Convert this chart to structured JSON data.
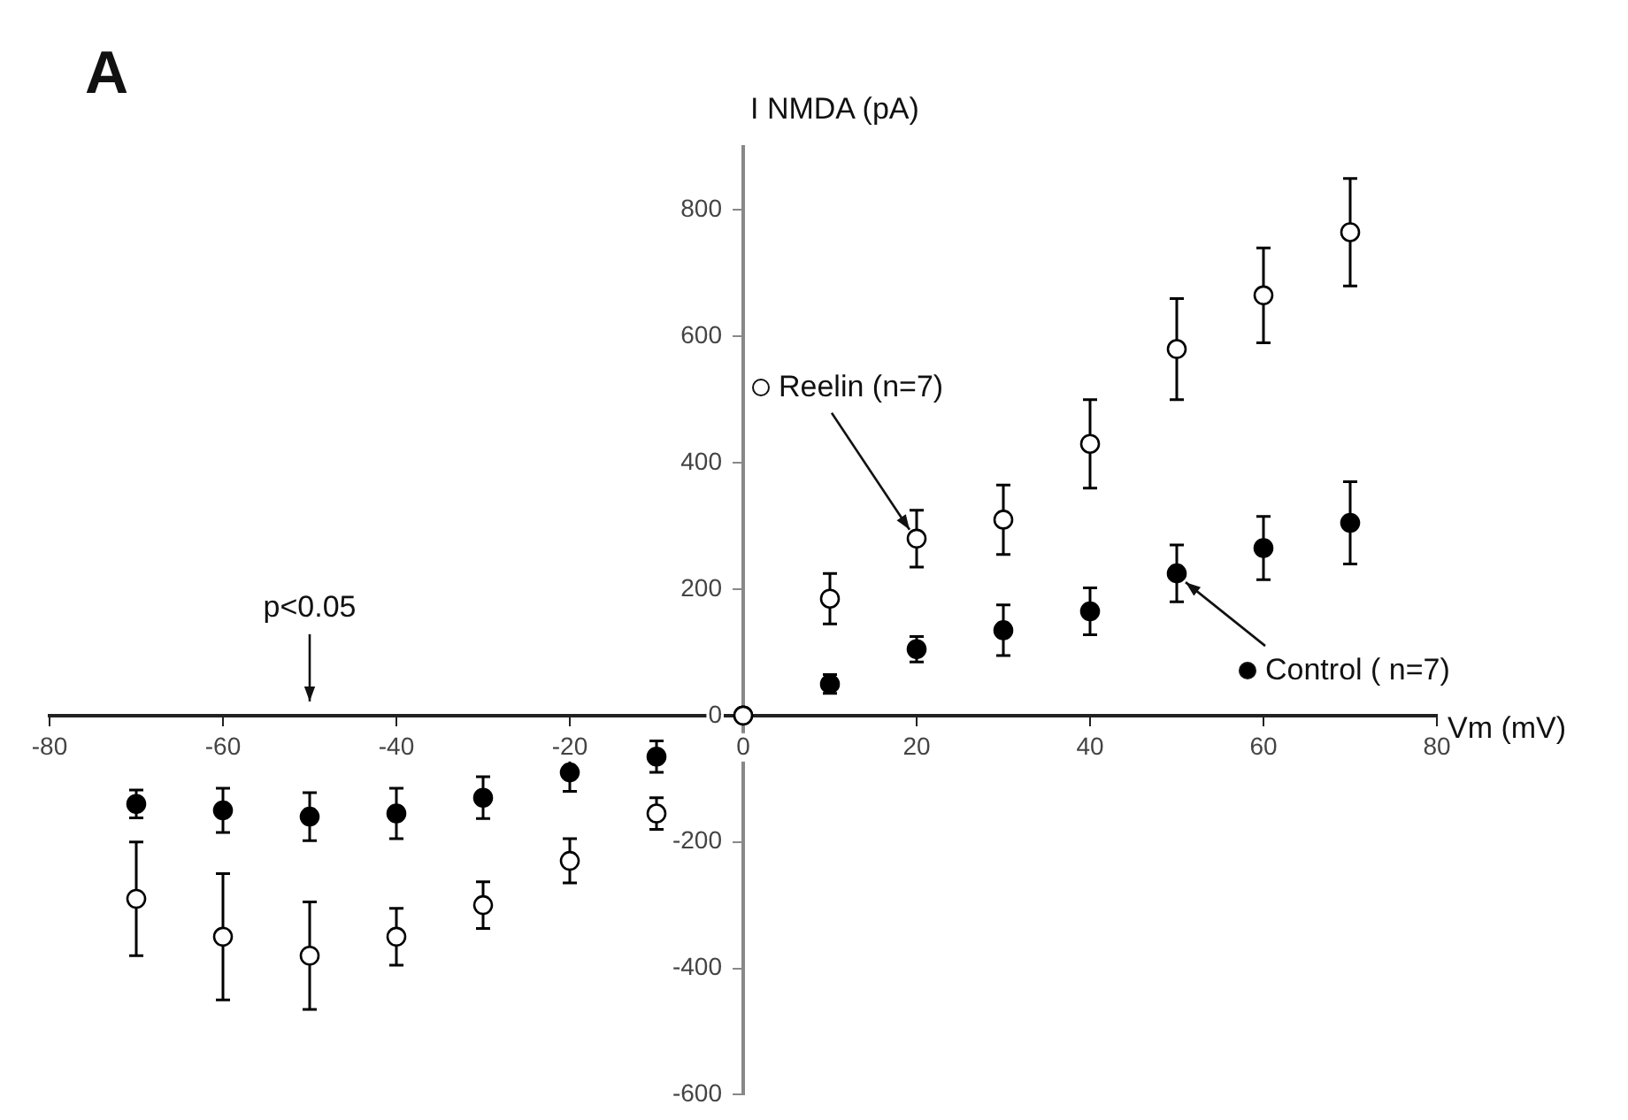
{
  "chart_data": {
    "type": "scatter",
    "title": "A",
    "xlabel": "Vm (mV)",
    "ylabel": "I NMDA (pA)",
    "x": [
      -70,
      -60,
      -50,
      -40,
      -30,
      -20,
      -10,
      0,
      10,
      20,
      30,
      40,
      50,
      60,
      70
    ],
    "series": [
      {
        "name": "Reelin (n=7)",
        "color": "#ffffff",
        "values": [
          -290,
          -350,
          -380,
          -350,
          -300,
          -230,
          -155,
          0,
          185,
          280,
          310,
          430,
          580,
          665,
          765
        ],
        "errors": [
          90,
          100,
          85,
          45,
          37,
          35,
          25,
          null,
          40,
          45,
          55,
          70,
          80,
          75,
          85
        ]
      },
      {
        "name": "Control ( n=7)",
        "color": "#000000",
        "values": [
          -140,
          -150,
          -160,
          -155,
          -130,
          -90,
          -65,
          0,
          50,
          105,
          135,
          165,
          225,
          265,
          305
        ],
        "errors": [
          22,
          35,
          38,
          40,
          33,
          30,
          25,
          null,
          15,
          20,
          40,
          37,
          45,
          50,
          65
        ]
      }
    ],
    "xlim": [
      -80,
      80
    ],
    "xticks": [
      -80,
      -60,
      -40,
      -20,
      0,
      20,
      40,
      60,
      80
    ],
    "ylim": [
      -600,
      900
    ],
    "yticks": [
      -600,
      -400,
      -200,
      0,
      200,
      400,
      600,
      800
    ],
    "annotations": [
      "p<0.05"
    ],
    "grid": false,
    "legend": "right",
    "marker": "circle"
  }
}
